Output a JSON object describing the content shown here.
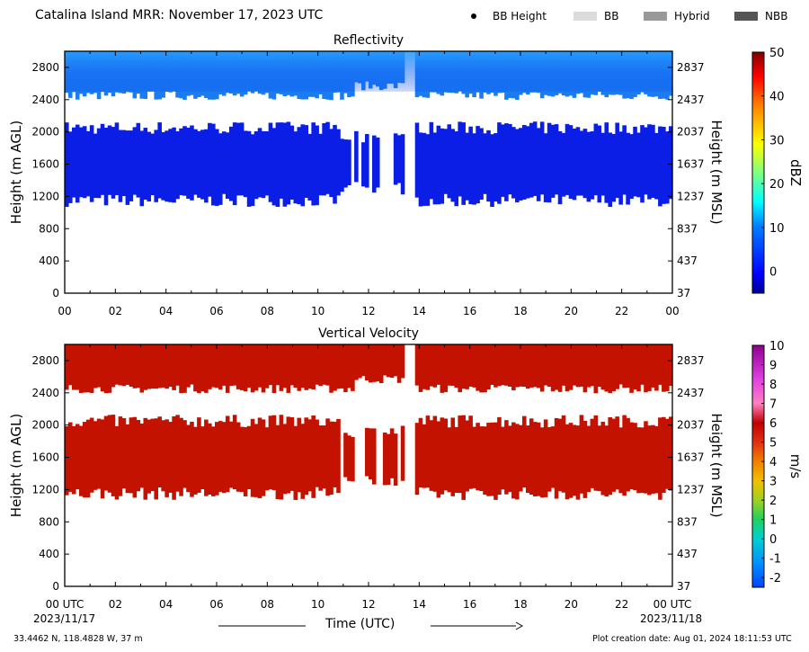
{
  "header": {
    "title": "Catalina Island MRR:  November 17, 2023 UTC",
    "legend": [
      {
        "label": "BB Height",
        "kind": "dot",
        "color": "#000000"
      },
      {
        "label": "BB",
        "kind": "swatch",
        "color": "#dcdcdc"
      },
      {
        "label": "Hybrid",
        "kind": "swatch",
        "color": "#999999"
      },
      {
        "label": "NBB",
        "kind": "swatch",
        "color": "#555555"
      }
    ]
  },
  "footer": {
    "location": "33.4462 N, 118.4828 W, 37 m",
    "creation": "Plot creation date: Aug 01, 2024 18:11:53 UTC",
    "xlabel": "Time (UTC)",
    "start_date": "2023/11/17",
    "end_date": "2023/11/18"
  },
  "chart_data": [
    {
      "type": "heatmap",
      "title": "Reflectivity",
      "ylabel": "Height (m AGL)",
      "y2label": "Height (m MSL)",
      "colorbar_label": "dBZ",
      "colorbar_ticks": [
        "0",
        "10",
        "20",
        "30",
        "40",
        "50"
      ],
      "colorbar_range": [
        -5,
        50
      ],
      "xticks": [
        "00",
        "02",
        "04",
        "06",
        "08",
        "10",
        "12",
        "14",
        "16",
        "18",
        "20",
        "22",
        "00"
      ],
      "yticks": [
        "0",
        "400",
        "800",
        "1200",
        "1600",
        "2000",
        "2400",
        "2800"
      ],
      "y2ticks": [
        "37",
        "437",
        "837",
        "1237",
        "1637",
        "2037",
        "2437",
        "2837"
      ],
      "xlim": [
        0,
        24
      ],
      "ylim": [
        0,
        3000
      ],
      "layers": [
        {
          "name": "lower",
          "base": 1150,
          "top": 2050,
          "value": 2,
          "color": "#0a1ee6"
        },
        {
          "name": "upper",
          "base": 2450,
          "top": 3000,
          "value": 8,
          "color": "#1a7cf0"
        }
      ],
      "gap_hours": [
        13.4,
        13.9
      ]
    },
    {
      "type": "heatmap",
      "title": "Vertical Velocity",
      "ylabel": "Height (m AGL)",
      "y2label": "Height (m MSL)",
      "colorbar_label": "m/s",
      "colorbar_ticks": [
        "-2",
        "-1",
        "0",
        "1",
        "2",
        "3",
        "4",
        "5",
        "6",
        "7",
        "8",
        "9",
        "10"
      ],
      "colorbar_range": [
        -2.5,
        10
      ],
      "xticks": [
        "00 UTC",
        "02",
        "04",
        "06",
        "08",
        "10",
        "12",
        "14",
        "16",
        "18",
        "20",
        "22",
        "00 UTC"
      ],
      "yticks": [
        "0",
        "400",
        "800",
        "1200",
        "1600",
        "2000",
        "2400",
        "2800"
      ],
      "y2ticks": [
        "37",
        "437",
        "837",
        "1237",
        "1637",
        "2037",
        "2437",
        "2837"
      ],
      "xlim": [
        0,
        24
      ],
      "ylim": [
        0,
        3000
      ],
      "layers": [
        {
          "name": "lower",
          "base": 1150,
          "top": 2050,
          "value": 5.8,
          "color": "#c41200"
        },
        {
          "name": "upper",
          "base": 2450,
          "top": 3000,
          "value": 5.8,
          "color": "#c41200"
        }
      ],
      "gap_hours": [
        13.4,
        13.9
      ]
    }
  ]
}
